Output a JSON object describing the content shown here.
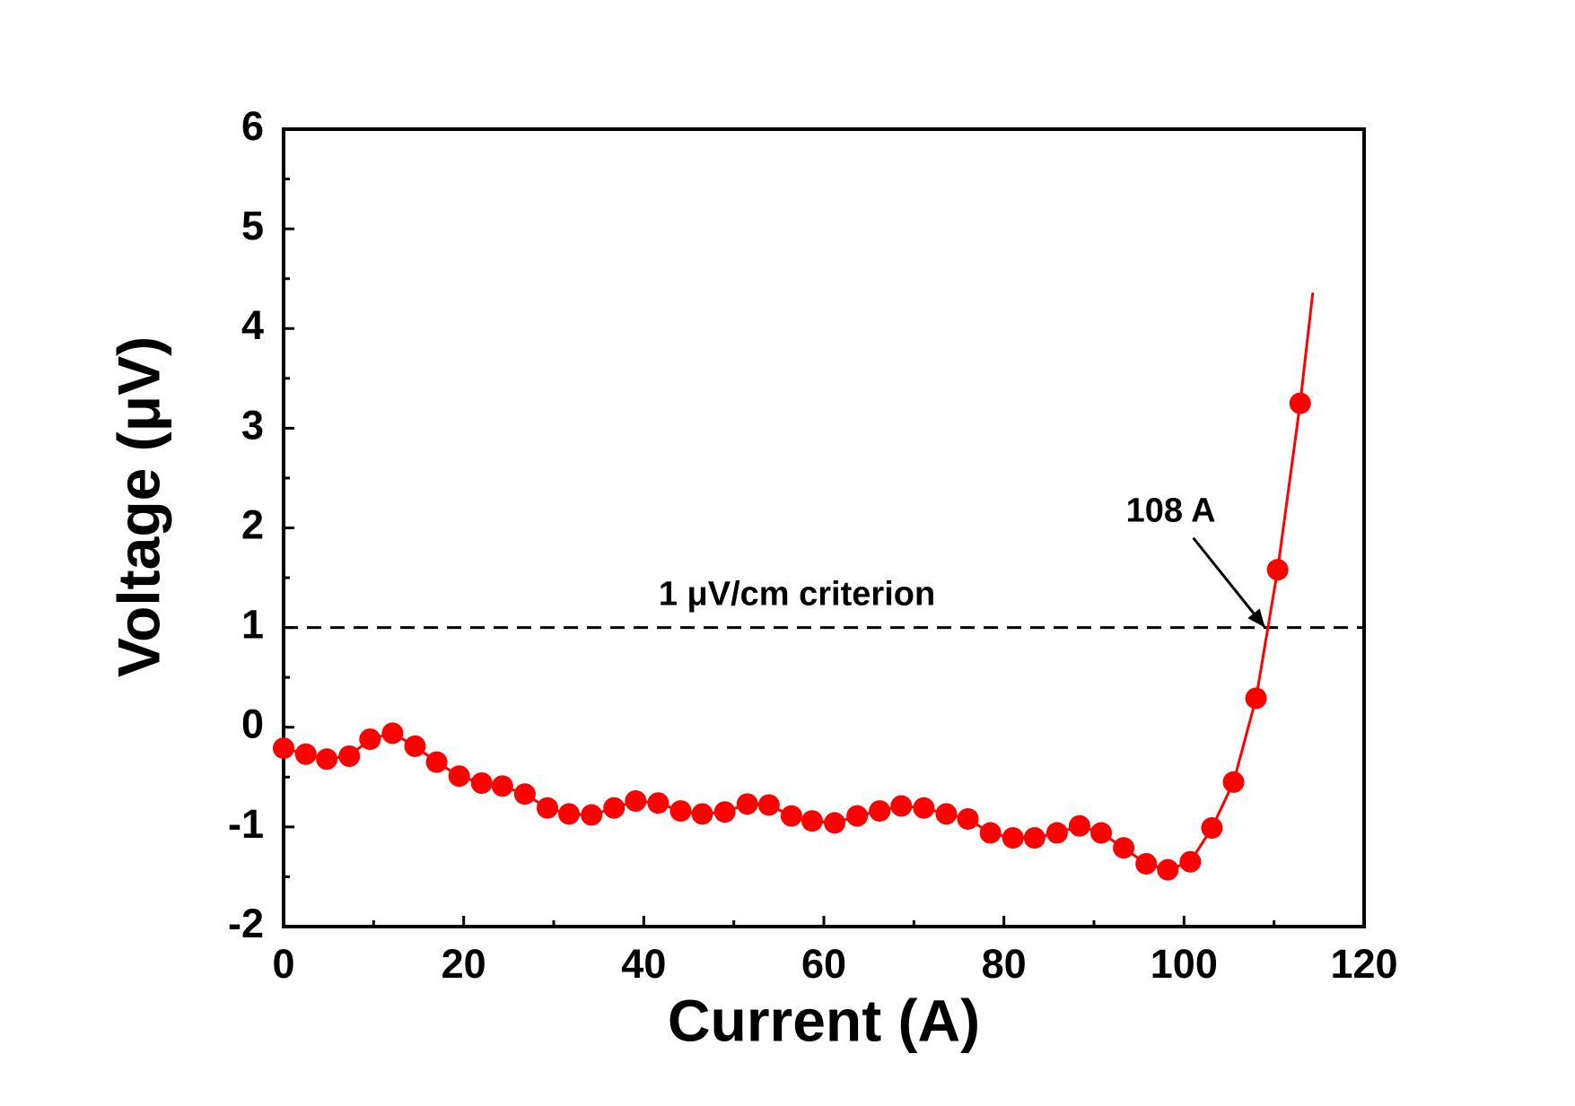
{
  "chart_data": {
    "type": "line",
    "x_label": "Current (A)",
    "y_label": "Voltage (μV)",
    "xlim": [
      0,
      120
    ],
    "ylim": [
      -2,
      6
    ],
    "xticks": [
      0,
      20,
      40,
      60,
      80,
      100,
      120
    ],
    "yticks": [
      -2,
      -1,
      0,
      1,
      2,
      3,
      4,
      5,
      6
    ],
    "xminorticks": [
      10,
      30,
      50,
      70,
      90,
      110
    ],
    "yminorticks": [
      -1.5,
      -0.5,
      0.5,
      1.5,
      2.5,
      3.5,
      4.5,
      5.5
    ],
    "series": [
      {
        "color": "#ff0000",
        "markers": true,
        "x": [
          0,
          2.47,
          4.8,
          7.3,
          9.6,
          12.1,
          14.6,
          17.0,
          19.5,
          22.0,
          24.3,
          26.8,
          29.3,
          31.7,
          34.2,
          36.7,
          39.1,
          41.6,
          44.1,
          46.5,
          49.0,
          51.5,
          53.9,
          56.4,
          58.7,
          61.2,
          63.7,
          66.2,
          68.6,
          71.1,
          73.6,
          76.0,
          78.5,
          81.0,
          83.4,
          85.9,
          88.4,
          90.8,
          93.3,
          95.8,
          98.2,
          100.7,
          103.1,
          105.5,
          108.0,
          110.4,
          112.9
        ],
        "values": [
          -0.21,
          -0.27,
          -0.32,
          -0.29,
          -0.12,
          -0.06,
          -0.19,
          -0.35,
          -0.49,
          -0.56,
          -0.59,
          -0.67,
          -0.81,
          -0.87,
          -0.88,
          -0.81,
          -0.74,
          -0.76,
          -0.84,
          -0.87,
          -0.85,
          -0.77,
          -0.78,
          -0.89,
          -0.94,
          -0.96,
          -0.89,
          -0.84,
          -0.79,
          -0.81,
          -0.87,
          -0.92,
          -1.06,
          -1.11,
          -1.11,
          -1.06,
          -0.99,
          -1.06,
          -1.21,
          -1.37,
          -1.43,
          -1.35,
          -1.01,
          -0.55,
          0.29,
          1.58,
          3.25
        ]
      },
      {
        "color": "#ff0000",
        "markers": false,
        "x": [
          112.9,
          114.3
        ],
        "values": [
          3.25,
          4.36
        ]
      }
    ],
    "hline": {
      "value": 1,
      "label": "1 μV/cm criterion",
      "color": "#000000",
      "dashed": true
    },
    "arrow_annotation": {
      "text": "108 A",
      "x": 109,
      "y": 1
    }
  }
}
